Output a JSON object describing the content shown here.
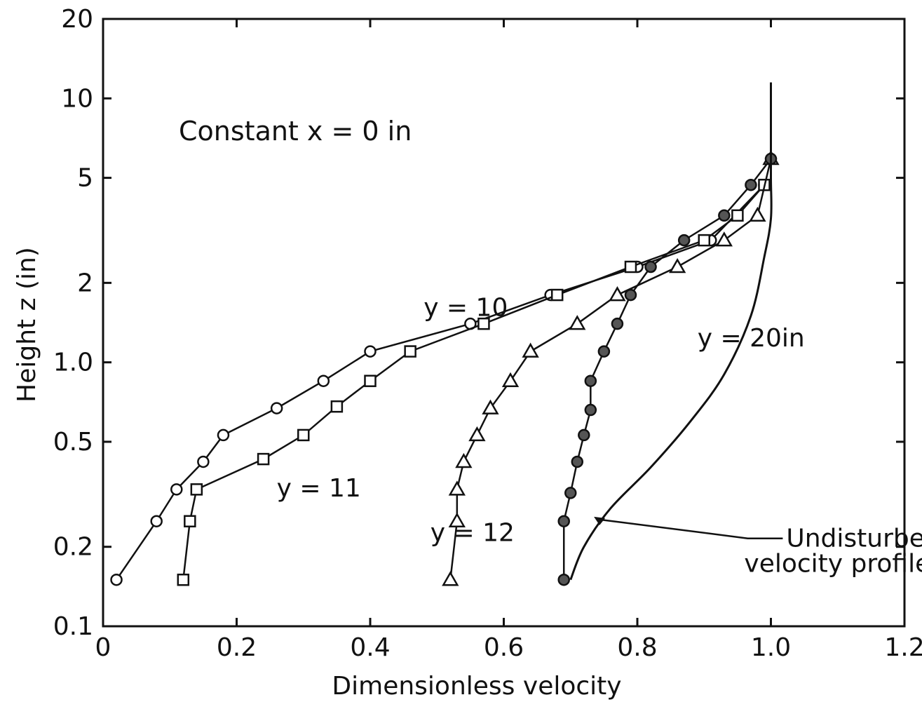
{
  "chart_data": {
    "type": "line",
    "title": "",
    "annotation": "Constant  x = 0 in",
    "xlabel": "Dimensionless velocity",
    "ylabel": "Height  z (in)",
    "xlim": [
      0,
      1.2
    ],
    "ylim": [
      0.1,
      20
    ],
    "yscale": "log",
    "grid": false,
    "x_ticks": [
      {
        "value": 0,
        "label": "0"
      },
      {
        "value": 0.2,
        "label": "0.2"
      },
      {
        "value": 0.4,
        "label": "0.4"
      },
      {
        "value": 0.6,
        "label": "0.6"
      },
      {
        "value": 0.8,
        "label": "0.8"
      },
      {
        "value": 1.0,
        "label": "1.0"
      },
      {
        "value": 1.2,
        "label": "1.2"
      }
    ],
    "y_ticks": [
      {
        "value": 0.1,
        "label": "0.1"
      },
      {
        "value": 0.2,
        "label": "0.2"
      },
      {
        "value": 0.5,
        "label": "0.5"
      },
      {
        "value": 1.0,
        "label": "1.0"
      },
      {
        "value": 2,
        "label": "2"
      },
      {
        "value": 5,
        "label": "5"
      },
      {
        "value": 10,
        "label": "10"
      },
      {
        "value": 20,
        "label": "20"
      }
    ],
    "series": [
      {
        "name": "y = 10",
        "marker": "circle",
        "x": [
          0.02,
          0.08,
          0.11,
          0.15,
          0.18,
          0.26,
          0.33,
          0.4,
          0.55,
          0.67,
          0.8,
          0.91,
          0.99
        ],
        "y": [
          0.15,
          0.25,
          0.33,
          0.42,
          0.53,
          0.67,
          0.85,
          1.1,
          1.4,
          1.8,
          2.3,
          2.9,
          4.7
        ]
      },
      {
        "name": "y = 11",
        "marker": "square",
        "x": [
          0.12,
          0.13,
          0.14,
          0.24,
          0.3,
          0.35,
          0.4,
          0.46,
          0.57,
          0.68,
          0.79,
          0.9,
          0.95,
          0.99
        ],
        "y": [
          0.15,
          0.25,
          0.33,
          0.43,
          0.53,
          0.68,
          0.85,
          1.1,
          1.4,
          1.8,
          2.3,
          2.9,
          3.6,
          4.7
        ]
      },
      {
        "name": "y = 12",
        "marker": "triangle",
        "x": [
          0.52,
          0.53,
          0.53,
          0.54,
          0.56,
          0.58,
          0.61,
          0.64,
          0.71,
          0.77,
          0.86,
          0.93,
          0.98,
          1.0
        ],
        "y": [
          0.15,
          0.25,
          0.33,
          0.42,
          0.53,
          0.67,
          0.85,
          1.1,
          1.4,
          1.8,
          2.3,
          2.9,
          3.6,
          5.9
        ]
      },
      {
        "name": "y = 20in",
        "marker": "filled-circle",
        "x": [
          0.69,
          0.69,
          0.7,
          0.71,
          0.72,
          0.73,
          0.73,
          0.75,
          0.77,
          0.79,
          0.82,
          0.87,
          0.93,
          0.97,
          1.0
        ],
        "y": [
          0.15,
          0.25,
          0.32,
          0.42,
          0.53,
          0.66,
          0.85,
          1.1,
          1.4,
          1.8,
          2.3,
          2.9,
          3.6,
          4.7,
          5.9
        ]
      },
      {
        "name": "Undisturbed velocity profile",
        "marker": "none",
        "x": [
          0.7,
          0.72,
          0.76,
          0.82,
          0.88,
          0.93,
          0.97,
          0.99,
          1.0,
          1.0,
          1.0,
          1.0
        ],
        "y": [
          0.15,
          0.2,
          0.28,
          0.4,
          0.6,
          0.9,
          1.5,
          2.5,
          3.5,
          5,
          8,
          11.5
        ]
      }
    ],
    "series_labels": [
      {
        "text": "y = 10",
        "x": 0.48,
        "y": 1.5
      },
      {
        "text": "y = 11",
        "x": 0.26,
        "y": 0.31
      },
      {
        "text": "y = 12",
        "x": 0.49,
        "y": 0.21
      },
      {
        "text": "y = 20in",
        "x": 0.89,
        "y": 1.15
      }
    ],
    "callout": {
      "text_lines": [
        "Undisturbed",
        "velocity profile"
      ],
      "text_x": 0.96,
      "text_y": 0.2,
      "arrow_to_x": 0.735,
      "arrow_to_y": 0.26
    }
  }
}
